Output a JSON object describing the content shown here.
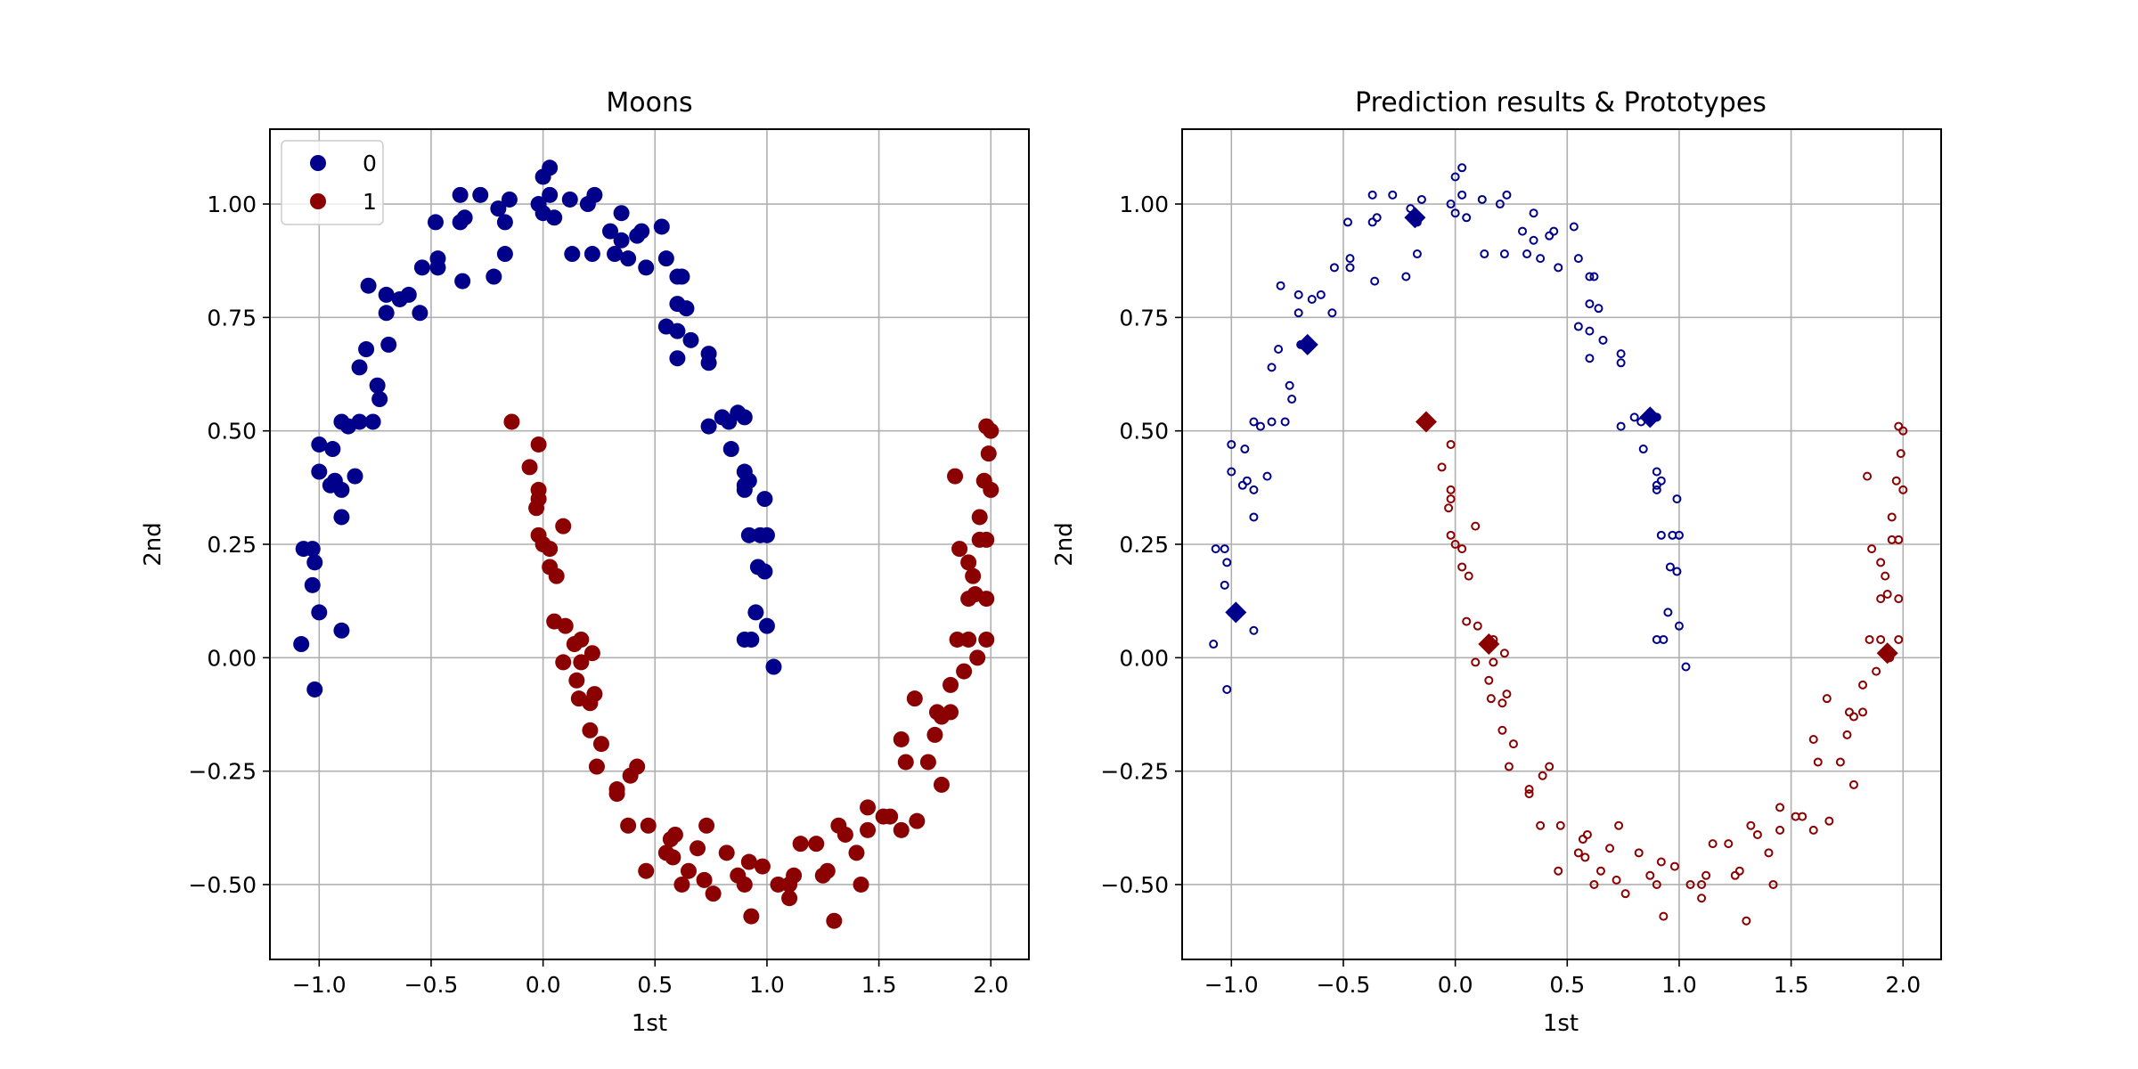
{
  "colors": {
    "class0": "#00008b",
    "class1": "#8b0000",
    "grid": "#b0b0b0",
    "frame": "#000000"
  },
  "chart_data": [
    {
      "type": "scatter",
      "title": "Moons",
      "xlabel": "1st",
      "ylabel": "2nd",
      "xlim": [
        -1.22,
        2.17
      ],
      "ylim": [
        -0.665,
        1.165
      ],
      "xticks": [
        -1.0,
        -0.5,
        0.0,
        0.5,
        1.0,
        1.5,
        2.0
      ],
      "xtick_labels": [
        "−1.0",
        "−0.5",
        "0.0",
        "0.5",
        "1.0",
        "1.5",
        "2.0"
      ],
      "yticks": [
        -0.5,
        -0.25,
        0.0,
        0.25,
        0.5,
        0.75,
        1.0
      ],
      "ytick_labels": [
        "−0.50",
        "−0.25",
        "0.00",
        "0.25",
        "0.50",
        "0.75",
        "1.00"
      ],
      "grid": true,
      "legend": {
        "position": "top-left",
        "entries": [
          "0",
          "1"
        ]
      },
      "series": [
        {
          "name": "0",
          "marker": "filled-circle",
          "points": [
            [
              -1.07,
              0.24
            ],
            [
              -1.03,
              0.24
            ],
            [
              -1.02,
              0.21
            ],
            [
              -1.03,
              0.16
            ],
            [
              -1.08,
              0.03
            ],
            [
              -1.02,
              -0.07
            ],
            [
              -1.0,
              0.1
            ],
            [
              -1.0,
              0.41
            ],
            [
              -1.0,
              0.47
            ],
            [
              -0.94,
              0.46
            ],
            [
              -0.95,
              0.38
            ],
            [
              -0.93,
              0.39
            ],
            [
              -0.9,
              0.37
            ],
            [
              -0.9,
              0.31
            ],
            [
              -0.9,
              0.06
            ],
            [
              -0.84,
              0.4
            ],
            [
              -0.9,
              0.52
            ],
            [
              -0.87,
              0.51
            ],
            [
              -0.82,
              0.52
            ],
            [
              -0.76,
              0.52
            ],
            [
              -0.82,
              0.64
            ],
            [
              -0.79,
              0.68
            ],
            [
              -0.74,
              0.6
            ],
            [
              -0.73,
              0.57
            ],
            [
              -0.69,
              0.69
            ],
            [
              -0.7,
              0.76
            ],
            [
              -0.64,
              0.79
            ],
            [
              -0.6,
              0.8
            ],
            [
              -0.78,
              0.82
            ],
            [
              -0.7,
              0.8
            ],
            [
              -0.55,
              0.76
            ],
            [
              -0.54,
              0.86
            ],
            [
              -0.47,
              0.86
            ],
            [
              -0.47,
              0.88
            ],
            [
              -0.48,
              0.96
            ],
            [
              -0.36,
              0.83
            ],
            [
              -0.37,
              0.96
            ],
            [
              -0.35,
              0.97
            ],
            [
              -0.37,
              1.02
            ],
            [
              -0.28,
              1.02
            ],
            [
              -0.22,
              0.84
            ],
            [
              -0.2,
              0.99
            ],
            [
              -0.17,
              0.96
            ],
            [
              -0.15,
              1.01
            ],
            [
              -0.17,
              0.89
            ],
            [
              -0.02,
              1.0
            ],
            [
              0.0,
              1.06
            ],
            [
              0.03,
              1.08
            ],
            [
              0.03,
              1.02
            ],
            [
              0.05,
              0.97
            ],
            [
              0.0,
              0.98
            ],
            [
              0.12,
              1.01
            ],
            [
              0.13,
              0.89
            ],
            [
              0.2,
              1.0
            ],
            [
              0.23,
              1.02
            ],
            [
              0.22,
              0.89
            ],
            [
              0.3,
              0.94
            ],
            [
              0.32,
              0.89
            ],
            [
              0.35,
              0.92
            ],
            [
              0.35,
              0.98
            ],
            [
              0.38,
              0.88
            ],
            [
              0.42,
              0.93
            ],
            [
              0.44,
              0.94
            ],
            [
              0.46,
              0.86
            ],
            [
              0.53,
              0.95
            ],
            [
              0.55,
              0.88
            ],
            [
              0.55,
              0.73
            ],
            [
              0.6,
              0.84
            ],
            [
              0.62,
              0.84
            ],
            [
              0.6,
              0.78
            ],
            [
              0.64,
              0.77
            ],
            [
              0.6,
              0.72
            ],
            [
              0.66,
              0.7
            ],
            [
              0.6,
              0.66
            ],
            [
              0.74,
              0.65
            ],
            [
              0.74,
              0.67
            ],
            [
              0.74,
              0.51
            ],
            [
              0.8,
              0.53
            ],
            [
              0.83,
              0.52
            ],
            [
              0.87,
              0.54
            ],
            [
              0.9,
              0.53
            ],
            [
              0.84,
              0.46
            ],
            [
              0.9,
              0.41
            ],
            [
              0.9,
              0.38
            ],
            [
              0.9,
              0.37
            ],
            [
              0.92,
              0.39
            ],
            [
              0.92,
              0.27
            ],
            [
              0.97,
              0.27
            ],
            [
              0.99,
              0.35
            ],
            [
              1.0,
              0.27
            ],
            [
              0.96,
              0.2
            ],
            [
              0.99,
              0.19
            ],
            [
              0.95,
              0.1
            ],
            [
              0.9,
              0.04
            ],
            [
              0.93,
              0.04
            ],
            [
              1.0,
              0.07
            ],
            [
              1.03,
              -0.02
            ]
          ]
        },
        {
          "name": "1",
          "marker": "filled-circle",
          "points": [
            [
              -0.14,
              0.52
            ],
            [
              -0.06,
              0.42
            ],
            [
              -0.02,
              0.35
            ],
            [
              -0.03,
              0.33
            ],
            [
              -0.02,
              0.37
            ],
            [
              -0.02,
              0.47
            ],
            [
              -0.02,
              0.27
            ],
            [
              0.0,
              0.25
            ],
            [
              0.03,
              0.24
            ],
            [
              0.03,
              0.2
            ],
            [
              0.06,
              0.18
            ],
            [
              0.09,
              0.29
            ],
            [
              0.05,
              0.08
            ],
            [
              0.1,
              0.07
            ],
            [
              0.09,
              -0.01
            ],
            [
              0.14,
              0.03
            ],
            [
              0.17,
              0.04
            ],
            [
              0.15,
              -0.05
            ],
            [
              0.17,
              -0.01
            ],
            [
              0.22,
              0.01
            ],
            [
              0.16,
              -0.09
            ],
            [
              0.21,
              -0.1
            ],
            [
              0.23,
              -0.08
            ],
            [
              0.21,
              -0.16
            ],
            [
              0.26,
              -0.19
            ],
            [
              0.24,
              -0.24
            ],
            [
              0.33,
              -0.29
            ],
            [
              0.33,
              -0.3
            ],
            [
              0.39,
              -0.26
            ],
            [
              0.42,
              -0.24
            ],
            [
              0.38,
              -0.37
            ],
            [
              0.47,
              -0.37
            ],
            [
              0.46,
              -0.47
            ],
            [
              0.55,
              -0.43
            ],
            [
              0.57,
              -0.4
            ],
            [
              0.59,
              -0.39
            ],
            [
              0.58,
              -0.44
            ],
            [
              0.62,
              -0.5
            ],
            [
              0.65,
              -0.47
            ],
            [
              0.69,
              -0.42
            ],
            [
              0.73,
              -0.37
            ],
            [
              0.72,
              -0.49
            ],
            [
              0.76,
              -0.52
            ],
            [
              0.82,
              -0.43
            ],
            [
              0.87,
              -0.48
            ],
            [
              0.9,
              -0.5
            ],
            [
              0.92,
              -0.45
            ],
            [
              0.93,
              -0.57
            ],
            [
              0.98,
              -0.46
            ],
            [
              1.05,
              -0.5
            ],
            [
              1.1,
              -0.53
            ],
            [
              1.12,
              -0.48
            ],
            [
              1.1,
              -0.5
            ],
            [
              1.15,
              -0.41
            ],
            [
              1.22,
              -0.41
            ],
            [
              1.25,
              -0.48
            ],
            [
              1.27,
              -0.47
            ],
            [
              1.32,
              -0.37
            ],
            [
              1.35,
              -0.39
            ],
            [
              1.3,
              -0.58
            ],
            [
              1.42,
              -0.5
            ],
            [
              1.4,
              -0.43
            ],
            [
              1.45,
              -0.38
            ],
            [
              1.45,
              -0.33
            ],
            [
              1.52,
              -0.35
            ],
            [
              1.55,
              -0.35
            ],
            [
              1.6,
              -0.38
            ],
            [
              1.6,
              -0.18
            ],
            [
              1.62,
              -0.23
            ],
            [
              1.67,
              -0.36
            ],
            [
              1.66,
              -0.09
            ],
            [
              1.72,
              -0.23
            ],
            [
              1.75,
              -0.17
            ],
            [
              1.76,
              -0.12
            ],
            [
              1.78,
              -0.28
            ],
            [
              1.78,
              -0.13
            ],
            [
              1.82,
              -0.12
            ],
            [
              1.82,
              -0.06
            ],
            [
              1.85,
              0.04
            ],
            [
              1.88,
              -0.03
            ],
            [
              1.9,
              0.04
            ],
            [
              1.94,
              0.0
            ],
            [
              1.9,
              0.13
            ],
            [
              1.93,
              0.14
            ],
            [
              1.92,
              0.18
            ],
            [
              1.9,
              0.21
            ],
            [
              1.86,
              0.24
            ],
            [
              1.95,
              0.26
            ],
            [
              1.95,
              0.31
            ],
            [
              1.98,
              0.26
            ],
            [
              2.0,
              0.37
            ],
            [
              1.97,
              0.39
            ],
            [
              1.99,
              0.45
            ],
            [
              1.98,
              0.51
            ],
            [
              2.0,
              0.5
            ],
            [
              1.84,
              0.4
            ],
            [
              1.98,
              0.13
            ],
            [
              1.98,
              0.04
            ]
          ]
        }
      ]
    },
    {
      "type": "scatter",
      "title": "Prediction results & Prototypes",
      "xlabel": "1st",
      "ylabel": "2nd",
      "xlim": [
        -1.22,
        2.17
      ],
      "ylim": [
        -0.665,
        1.165
      ],
      "xticks": [
        -1.0,
        -0.5,
        0.0,
        0.5,
        1.0,
        1.5,
        2.0
      ],
      "xtick_labels": [
        "−1.0",
        "−0.5",
        "0.0",
        "0.5",
        "1.0",
        "1.5",
        "2.0"
      ],
      "yticks": [
        -0.5,
        -0.25,
        0.0,
        0.25,
        0.5,
        0.75,
        1.0
      ],
      "ytick_labels": [
        "−0.50",
        "−0.25",
        "0.00",
        "0.25",
        "0.50",
        "0.75",
        "1.00"
      ],
      "grid": true,
      "series": [
        {
          "name": "",
          "class": 0,
          "marker": "hollow-circle",
          "points": "same-as-moons-class-0"
        },
        {
          "name": "",
          "class": 1,
          "marker": "hollow-circle",
          "points": "same-as-moons-class-1"
        },
        {
          "name": "",
          "class": 0,
          "marker": "diamond",
          "points": [
            [
              -0.98,
              0.1
            ],
            [
              -0.66,
              0.69
            ],
            [
              -0.18,
              0.97
            ],
            [
              0.87,
              0.53
            ]
          ]
        },
        {
          "name": "",
          "class": 1,
          "marker": "diamond",
          "points": [
            [
              -0.13,
              0.52
            ],
            [
              0.15,
              0.03
            ],
            [
              1.93,
              0.01
            ]
          ]
        }
      ]
    }
  ]
}
